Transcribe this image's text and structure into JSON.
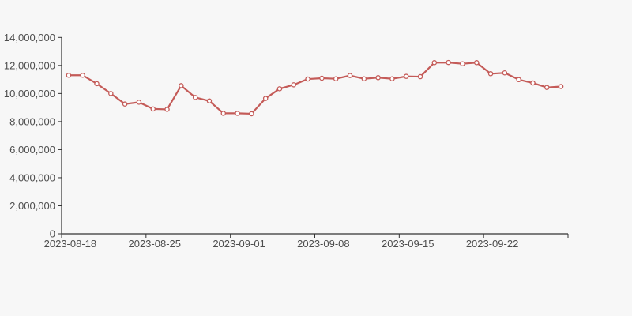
{
  "page": {
    "background_color": "#f7f7f7"
  },
  "chart_data": {
    "type": "line",
    "title": "",
    "xlabel": "",
    "ylabel": "",
    "grid": false,
    "legend": "none",
    "axis_color": "#333333",
    "label_color": "#4d4d4d",
    "ylim": [
      0,
      14000000
    ],
    "y_ticks": [
      0,
      2000000,
      4000000,
      6000000,
      8000000,
      10000000,
      12000000,
      14000000
    ],
    "y_tick_labels": [
      "0",
      "2,000,000",
      "4,000,000",
      "6,000,000",
      "8,000,000",
      "10,000,000",
      "12,000,000",
      "14,000,000"
    ],
    "x_tick_indices": [
      0,
      6,
      12,
      18,
      24,
      30
    ],
    "x_tick_labels": [
      "2023-08-18",
      "2023-08-25",
      "2023-09-01",
      "2023-09-08",
      "2023-09-15",
      "2023-09-22"
    ],
    "series": [
      {
        "name": "value",
        "color": "#c45b58",
        "marker": "open-circle",
        "marker_fill": "#ffffff",
        "values": [
          11300000,
          11300000,
          10700000,
          10000000,
          9250000,
          9380000,
          8900000,
          8870000,
          10560000,
          9720000,
          9470000,
          8590000,
          8590000,
          8560000,
          9650000,
          10340000,
          10620000,
          11030000,
          11090000,
          11050000,
          11280000,
          11050000,
          11130000,
          11050000,
          11220000,
          11200000,
          12200000,
          12210000,
          12120000,
          12200000,
          11410000,
          11470000,
          10990000,
          10750000,
          10430000,
          10500000
        ]
      }
    ]
  }
}
